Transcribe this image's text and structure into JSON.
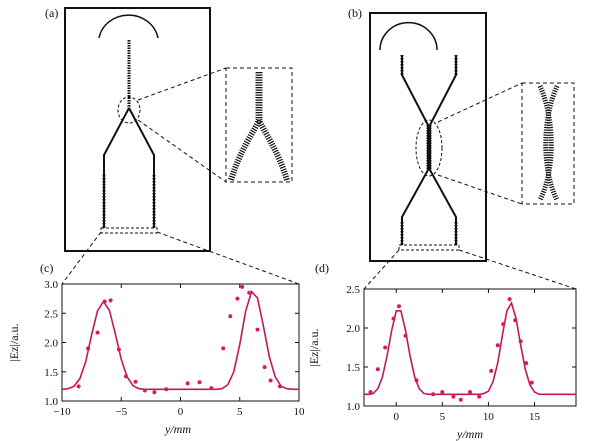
{
  "panels": {
    "a": {
      "label": "(a)"
    },
    "b": {
      "label": "(b)"
    }
  },
  "colors": {
    "fit_line": "#c2185b",
    "points": "#d81b60",
    "structure": "#222222"
  },
  "chart_data": [
    {
      "panel": "(c)",
      "type": "scatter",
      "xlabel": "y/mm",
      "ylabel": "|Ez|/a.u.",
      "xlim": [
        -10,
        10
      ],
      "ylim": [
        1.0,
        3.0
      ],
      "xticks": [
        -10,
        -5,
        0,
        5,
        10
      ],
      "yticks": [
        1.0,
        1.5,
        2.0,
        2.5,
        3.0
      ],
      "grid": false,
      "series": [
        {
          "kind": "points",
          "x": [
            -8.6,
            -7.8,
            -7.0,
            -6.4,
            -5.9,
            -5.2,
            -4.6,
            -3.8,
            -3.0,
            -2.2,
            -1.2,
            0.6,
            1.6,
            2.6,
            3.6,
            4.2,
            4.8,
            5.2,
            5.8,
            6.5,
            7.1,
            7.6,
            8.4
          ],
          "y": [
            1.25,
            1.9,
            2.17,
            2.7,
            2.72,
            1.88,
            1.42,
            1.33,
            1.18,
            1.15,
            1.2,
            1.3,
            1.32,
            1.22,
            1.9,
            2.45,
            2.75,
            2.95,
            2.85,
            2.22,
            1.58,
            1.35,
            1.25
          ]
        },
        {
          "kind": "fit",
          "x": [
            -10.0,
            -9.5,
            -9.0,
            -8.5,
            -8.0,
            -7.5,
            -7.0,
            -6.5,
            -6.0,
            -5.5,
            -5.0,
            -4.5,
            -4.0,
            -3.5,
            -3.0,
            -2.5,
            -2.0,
            -1.5,
            -1.0,
            -0.5,
            0.0,
            0.5,
            1.0,
            1.5,
            2.0,
            2.5,
            3.0,
            3.5,
            4.0,
            4.5,
            5.0,
            5.5,
            6.0,
            6.5,
            7.0,
            7.5,
            8.0,
            8.5,
            9.0,
            9.5,
            10.0
          ],
          "y": [
            1.2,
            1.21,
            1.25,
            1.38,
            1.67,
            2.13,
            2.54,
            2.7,
            2.55,
            2.15,
            1.71,
            1.41,
            1.26,
            1.21,
            1.2,
            1.2,
            1.2,
            1.2,
            1.2,
            1.2,
            1.2,
            1.2,
            1.2,
            1.2,
            1.2,
            1.2,
            1.2,
            1.21,
            1.28,
            1.5,
            1.97,
            2.54,
            2.87,
            2.76,
            2.28,
            1.75,
            1.41,
            1.25,
            1.21,
            1.2,
            1.2
          ]
        }
      ]
    },
    {
      "panel": "(d)",
      "type": "scatter",
      "xlabel": "y/mm",
      "ylabel": "|Ez|/a.u.",
      "xlim": [
        -3.5,
        19.5
      ],
      "ylim": [
        1.0,
        2.5
      ],
      "xticks": [
        0,
        5,
        10,
        15
      ],
      "yticks": [
        1.0,
        1.5,
        2.0,
        2.5
      ],
      "grid": false,
      "series": [
        {
          "kind": "points",
          "x": [
            -2.8,
            -2.0,
            -1.2,
            -0.3,
            0.3,
            1.0,
            2.2,
            4.0,
            5.0,
            6.2,
            7.0,
            8.0,
            9.0,
            10.3,
            11.0,
            11.6,
            12.3,
            12.9,
            13.5,
            14.1,
            14.7
          ],
          "y": [
            1.18,
            1.47,
            1.75,
            2.12,
            2.28,
            1.9,
            1.33,
            1.15,
            1.18,
            1.12,
            1.08,
            1.18,
            1.12,
            1.45,
            1.78,
            2.05,
            2.37,
            2.1,
            1.83,
            1.55,
            1.3
          ]
        },
        {
          "kind": "fit",
          "x": [
            -3.5,
            -3.0,
            -2.5,
            -2.0,
            -1.5,
            -1.0,
            -0.5,
            0.0,
            0.5,
            1.0,
            1.5,
            2.0,
            2.5,
            3.0,
            3.5,
            4.0,
            4.5,
            5.0,
            5.5,
            6.0,
            6.5,
            7.0,
            7.5,
            8.0,
            8.5,
            9.0,
            9.5,
            10.0,
            10.5,
            11.0,
            11.5,
            12.0,
            12.5,
            13.0,
            13.5,
            14.0,
            14.5,
            15.0,
            15.5,
            16.0,
            16.5,
            17.0,
            17.5,
            18.0,
            18.5,
            19.0,
            19.5
          ],
          "y": [
            1.15,
            1.15,
            1.16,
            1.22,
            1.37,
            1.64,
            1.97,
            2.22,
            2.22,
            1.97,
            1.64,
            1.37,
            1.22,
            1.16,
            1.15,
            1.15,
            1.15,
            1.15,
            1.15,
            1.15,
            1.15,
            1.15,
            1.15,
            1.15,
            1.15,
            1.15,
            1.16,
            1.19,
            1.31,
            1.55,
            1.9,
            2.22,
            2.32,
            2.12,
            1.78,
            1.47,
            1.27,
            1.18,
            1.15,
            1.15,
            1.15,
            1.15,
            1.15,
            1.15,
            1.15,
            1.15,
            1.15
          ]
        }
      ]
    }
  ]
}
